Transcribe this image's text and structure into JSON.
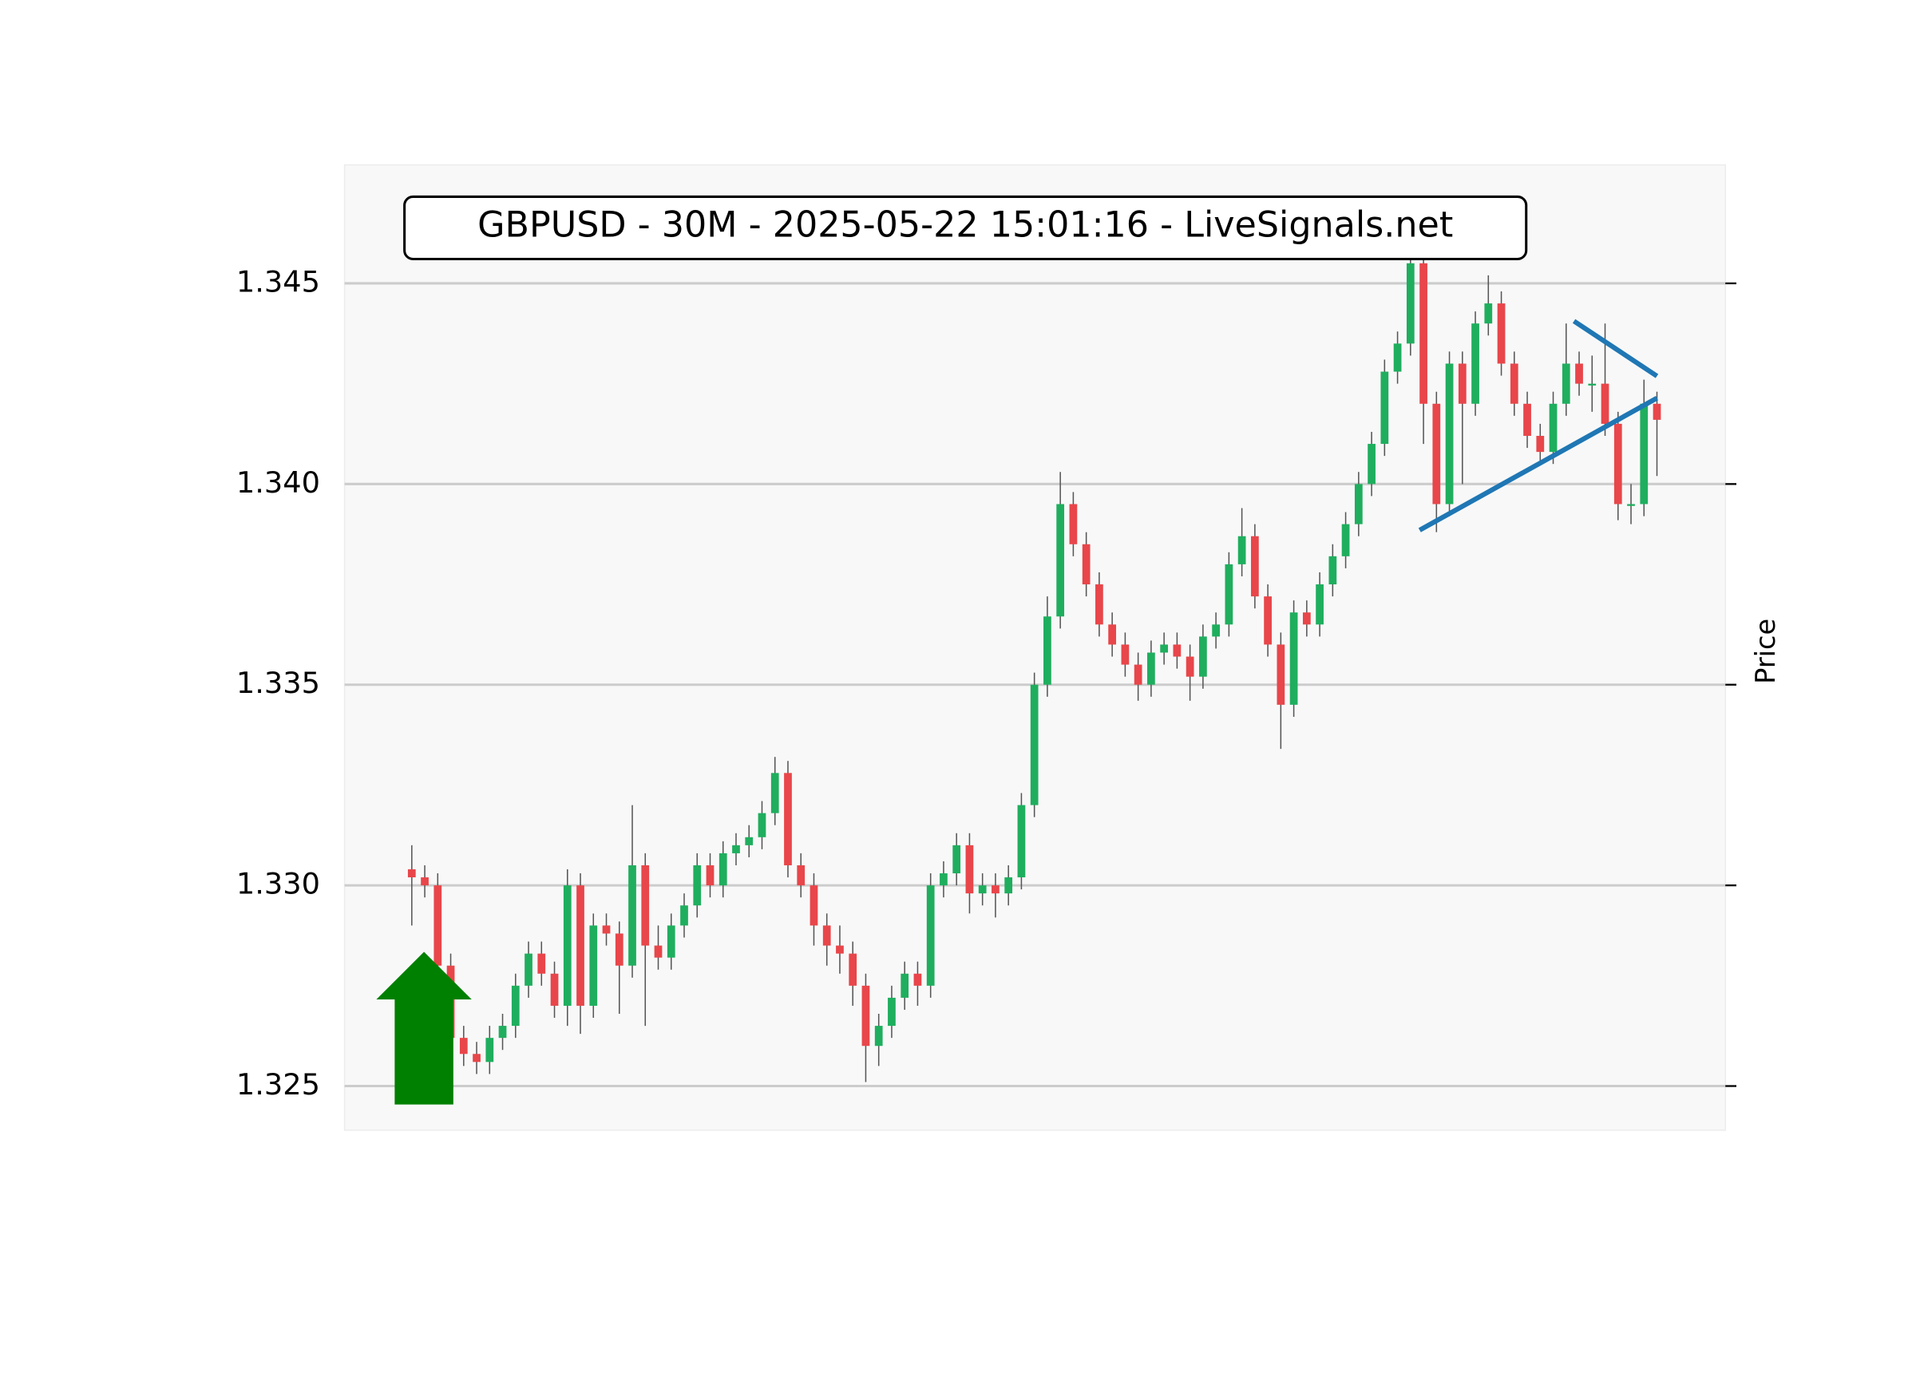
{
  "chart_data": {
    "type": "candlestick",
    "title": "GBPUSD - 30M - 2025-05-22 15:01:16 - LiveSignals.net",
    "y_label": "Price",
    "up_color": "#1fae5e",
    "down_color": "#e8464a",
    "grid": true,
    "ylim": [
      1.3239,
      1.34795
    ],
    "yticks": [
      1.325,
      {
        "value": 1.33,
        "label": "1.330"
      },
      1.335,
      {
        "value": 1.34,
        "label": "1.340"
      },
      1.345
    ],
    "open": [
      1.3304,
      1.3302,
      1.33,
      1.328,
      1.3262,
      1.3258,
      1.3256,
      1.3262,
      1.3265,
      1.3275,
      1.3283,
      1.3278,
      1.327,
      1.33,
      1.327,
      1.329,
      1.3288,
      1.328,
      1.3305,
      1.3285,
      1.3282,
      1.329,
      1.3295,
      1.3305,
      1.33,
      1.3308,
      1.331,
      1.3312,
      1.3318,
      1.3328,
      1.3305,
      1.33,
      1.329,
      1.3285,
      1.3283,
      1.3275,
      1.326,
      1.3265,
      1.3272,
      1.3278,
      1.3275,
      1.33,
      1.3303,
      1.331,
      1.3298,
      1.33,
      1.3298,
      1.3302,
      1.332,
      1.335,
      1.3367,
      1.3395,
      1.3385,
      1.3375,
      1.3365,
      1.336,
      1.3355,
      1.335,
      1.3358,
      1.336,
      1.3357,
      1.3352,
      1.3362,
      1.3365,
      1.338,
      1.3387,
      1.3372,
      1.336,
      1.3345,
      1.3368,
      1.3365,
      1.3375,
      1.3382,
      1.339,
      1.34,
      1.341,
      1.3428,
      1.3435,
      1.3455,
      1.342,
      1.3395,
      1.343,
      1.342,
      1.344,
      1.3445,
      1.343,
      1.342,
      1.3412,
      1.3408,
      1.342,
      1.343,
      1.3425,
      1.3425,
      1.3415,
      1.3395,
      1.3395,
      1.342
    ],
    "high": [
      1.331,
      1.3305,
      1.3303,
      1.3283,
      1.3265,
      1.3261,
      1.3265,
      1.3268,
      1.3278,
      1.3286,
      1.3286,
      1.3281,
      1.3304,
      1.3303,
      1.3293,
      1.3293,
      1.3291,
      1.332,
      1.3308,
      1.329,
      1.3293,
      1.3298,
      1.3308,
      1.3308,
      1.3311,
      1.3313,
      1.3315,
      1.3321,
      1.3332,
      1.3331,
      1.3308,
      1.3303,
      1.3293,
      1.329,
      1.3286,
      1.3278,
      1.3268,
      1.3275,
      1.3281,
      1.3281,
      1.3303,
      1.3306,
      1.3313,
      1.3313,
      1.3303,
      1.3303,
      1.3305,
      1.3323,
      1.3353,
      1.3372,
      1.3403,
      1.3398,
      1.3388,
      1.3378,
      1.3368,
      1.3363,
      1.3358,
      1.3361,
      1.3363,
      1.3363,
      1.336,
      1.3365,
      1.3368,
      1.3383,
      1.3394,
      1.339,
      1.3375,
      1.3363,
      1.3371,
      1.3371,
      1.3378,
      1.3385,
      1.3393,
      1.3403,
      1.3413,
      1.3431,
      1.3438,
      1.3462,
      1.3458,
      1.3423,
      1.3433,
      1.3433,
      1.3443,
      1.3452,
      1.3448,
      1.3433,
      1.3423,
      1.3415,
      1.3423,
      1.344,
      1.3433,
      1.3432,
      1.344,
      1.3418,
      1.34,
      1.3426,
      1.3423
    ],
    "low": [
      1.329,
      1.3297,
      1.3277,
      1.3259,
      1.3255,
      1.3253,
      1.3253,
      1.3259,
      1.3262,
      1.3272,
      1.3275,
      1.3267,
      1.3265,
      1.3263,
      1.3267,
      1.3285,
      1.3268,
      1.3277,
      1.3265,
      1.3279,
      1.3279,
      1.3287,
      1.3292,
      1.3297,
      1.3297,
      1.3305,
      1.3307,
      1.3309,
      1.3315,
      1.3302,
      1.3297,
      1.3285,
      1.328,
      1.3278,
      1.327,
      1.3251,
      1.3255,
      1.3262,
      1.3269,
      1.327,
      1.3272,
      1.3297,
      1.33,
      1.3293,
      1.3295,
      1.3292,
      1.3295,
      1.3299,
      1.3317,
      1.3347,
      1.3364,
      1.3382,
      1.3372,
      1.3362,
      1.3357,
      1.3352,
      1.3346,
      1.3347,
      1.3355,
      1.3354,
      1.3346,
      1.3349,
      1.3359,
      1.3362,
      1.3377,
      1.3369,
      1.3357,
      1.3334,
      1.3342,
      1.3362,
      1.3362,
      1.3372,
      1.3379,
      1.3387,
      1.3397,
      1.3407,
      1.3425,
      1.3432,
      1.341,
      1.3388,
      1.3392,
      1.34,
      1.3417,
      1.3437,
      1.3427,
      1.3417,
      1.3409,
      1.3405,
      1.3405,
      1.3417,
      1.3422,
      1.3418,
      1.3412,
      1.3391,
      1.339,
      1.3392,
      1.3402
    ],
    "close": [
      1.3302,
      1.33,
      1.328,
      1.3262,
      1.3258,
      1.3256,
      1.3262,
      1.3265,
      1.3275,
      1.3283,
      1.3278,
      1.327,
      1.33,
      1.327,
      1.329,
      1.3288,
      1.328,
      1.3305,
      1.3285,
      1.3282,
      1.329,
      1.3295,
      1.3305,
      1.33,
      1.3308,
      1.331,
      1.3312,
      1.3318,
      1.3328,
      1.3305,
      1.33,
      1.329,
      1.3285,
      1.3283,
      1.3275,
      1.326,
      1.3265,
      1.3272,
      1.3278,
      1.3275,
      1.33,
      1.3303,
      1.331,
      1.3298,
      1.33,
      1.3298,
      1.3302,
      1.332,
      1.335,
      1.3367,
      1.3395,
      1.3385,
      1.3375,
      1.3365,
      1.336,
      1.3355,
      1.335,
      1.3358,
      1.336,
      1.3357,
      1.3352,
      1.3362,
      1.3365,
      1.338,
      1.3387,
      1.3372,
      1.336,
      1.3345,
      1.3368,
      1.3365,
      1.3375,
      1.3382,
      1.339,
      1.34,
      1.341,
      1.3428,
      1.3435,
      1.3455,
      1.342,
      1.3395,
      1.343,
      1.342,
      1.344,
      1.3445,
      1.343,
      1.342,
      1.3412,
      1.3408,
      1.342,
      1.343,
      1.3425,
      1.3425,
      1.3415,
      1.3395,
      1.3395,
      1.342,
      1.3416
    ],
    "trendlines": [
      {
        "color": "#1f77b4",
        "x": [
          77.7,
          96
        ],
        "y": [
          1.33885,
          1.34214
        ]
      },
      {
        "color": "#1f77b4",
        "x": [
          89.6,
          96
        ],
        "y": [
          1.34406,
          1.34269
        ]
      }
    ]
  }
}
